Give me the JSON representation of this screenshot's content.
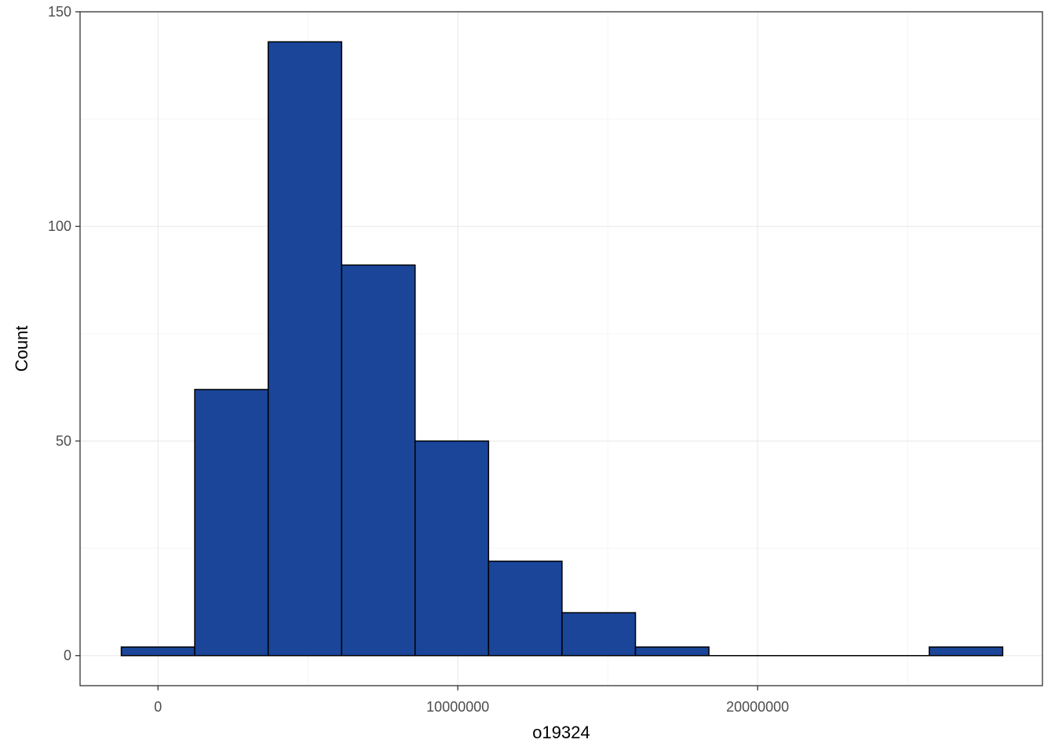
{
  "chart_data": {
    "type": "bar",
    "subtype": "histogram",
    "xlabel": "o19324",
    "ylabel": "Count",
    "bin_width": 2450000,
    "bins": [
      {
        "x_start": -1225000,
        "x_end": 1225000,
        "count": 2
      },
      {
        "x_start": 1225000,
        "x_end": 3675000,
        "count": 62
      },
      {
        "x_start": 3675000,
        "x_end": 6125000,
        "count": 143
      },
      {
        "x_start": 6125000,
        "x_end": 8575000,
        "count": 91
      },
      {
        "x_start": 8575000,
        "x_end": 11025000,
        "count": 50
      },
      {
        "x_start": 11025000,
        "x_end": 13475000,
        "count": 22
      },
      {
        "x_start": 13475000,
        "x_end": 15925000,
        "count": 10
      },
      {
        "x_start": 15925000,
        "x_end": 18375000,
        "count": 2
      },
      {
        "x_start": 18375000,
        "x_end": 20825000,
        "count": 0
      },
      {
        "x_start": 20825000,
        "x_end": 23275000,
        "count": 0
      },
      {
        "x_start": 23275000,
        "x_end": 25725000,
        "count": 0
      },
      {
        "x_start": 25725000,
        "x_end": 28175000,
        "count": 2
      }
    ],
    "xlim": [
      -2600000,
      29500000
    ],
    "ylim": [
      -7,
      150
    ],
    "x_ticks": [
      0,
      10000000,
      20000000
    ],
    "x_tick_labels": [
      "0",
      "10000000",
      "20000000"
    ],
    "y_ticks": [
      0,
      50,
      100,
      150
    ],
    "y_tick_labels": [
      "0",
      "50",
      "100",
      "150"
    ],
    "grid": true,
    "legend": "none",
    "colors": {
      "bar_fill": "#1a4599",
      "bar_outline": "#000000",
      "grid": "#ebebeb",
      "panel_border": "#333333"
    }
  }
}
